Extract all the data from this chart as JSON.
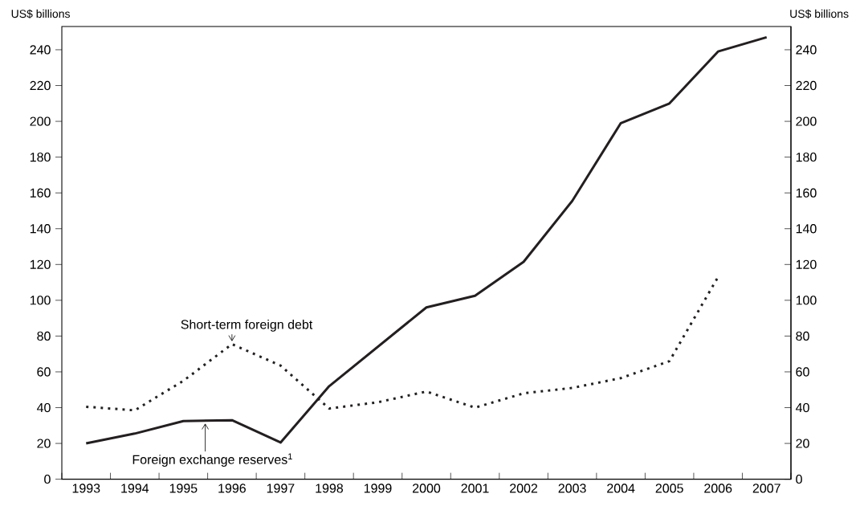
{
  "chart_data": {
    "type": "line",
    "ylabel": "US$ billions",
    "y2label": "US$ billions",
    "categories": [
      "1993",
      "1994",
      "1995",
      "1996",
      "1997",
      "1998",
      "1999",
      "2000",
      "2001",
      "2002",
      "2003",
      "2004",
      "2005",
      "2006",
      "2007"
    ],
    "series": [
      {
        "name": "Foreign exchange reserves$^{1}$",
        "color": "#231f20",
        "line_style": "solid",
        "values": [
          20,
          25.5,
          32.5,
          33,
          20.5,
          52,
          74,
          96,
          102.5,
          121.5,
          155.5,
          199,
          210,
          239,
          247
        ]
      },
      {
        "name": "Short-term foreign debt",
        "color": "#231f20",
        "line_style": "dotted",
        "values": [
          40.5,
          38.5,
          55,
          75.5,
          63.5,
          39.5,
          43,
          49,
          40,
          48,
          51,
          56.5,
          66,
          113,
          null
        ]
      }
    ],
    "ylim": [
      0,
      253
    ],
    "yticks": [
      0,
      20,
      40,
      60,
      80,
      100,
      120,
      140,
      160,
      180,
      200,
      220,
      240
    ],
    "y2lim": [
      0,
      253
    ],
    "y2ticks": [
      0,
      20,
      40,
      60,
      80,
      100,
      120,
      140,
      160,
      180,
      200,
      220,
      240
    ]
  }
}
